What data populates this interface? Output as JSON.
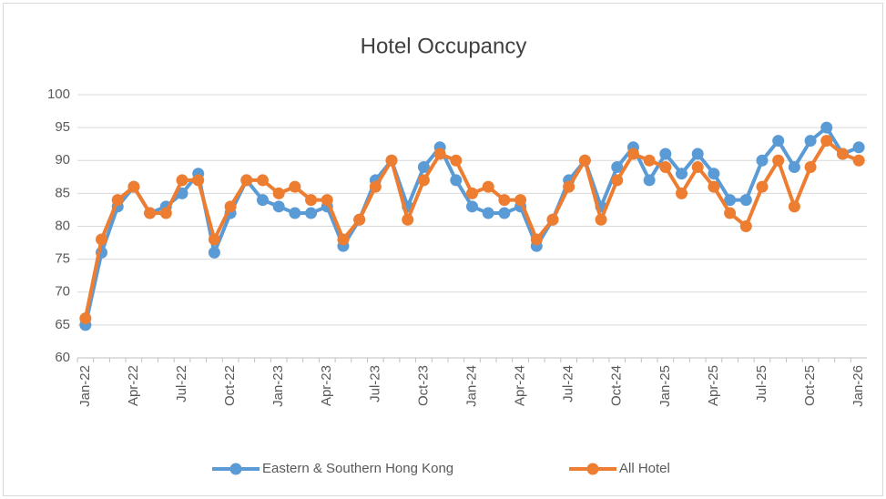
{
  "chart_data": {
    "type": "line",
    "title": "Hotel Occupancy",
    "categories": [
      "Jan-22",
      null,
      null,
      "Apr-22",
      null,
      null,
      "Jul-22",
      null,
      null,
      "Oct-22",
      null,
      null,
      "Jan-23",
      null,
      null,
      "Apr-23",
      null,
      null,
      "Jul-23",
      null,
      null,
      "Oct-23",
      null,
      null,
      "Jan-24",
      null,
      null,
      "Apr-24",
      null,
      null,
      "Jul-24",
      null,
      null,
      "Oct-24",
      null,
      null,
      "Jan-25",
      null,
      null,
      "Apr-25",
      null,
      null,
      "Jul-25",
      null,
      null,
      "Oct-25",
      null,
      null,
      "Jan-26"
    ],
    "series": [
      {
        "name": "Eastern & Southern Hong Kong",
        "color": "#5b9bd5",
        "values": [
          65,
          76,
          83,
          86,
          82,
          83,
          85,
          88,
          76,
          82,
          87,
          84,
          83,
          82,
          82,
          83,
          77,
          81,
          87,
          90,
          83,
          89,
          92,
          87,
          83,
          82,
          82,
          83,
          77,
          81,
          87,
          90,
          83,
          89,
          92,
          87,
          91,
          88,
          91,
          88,
          84,
          84,
          90,
          93,
          89,
          93,
          95,
          91,
          92
        ]
      },
      {
        "name": "All Hotel",
        "color": "#ed7d31",
        "values": [
          66,
          78,
          84,
          86,
          82,
          82,
          87,
          87,
          78,
          83,
          87,
          87,
          85,
          86,
          84,
          84,
          78,
          81,
          86,
          90,
          81,
          87,
          91,
          90,
          85,
          86,
          84,
          84,
          78,
          81,
          86,
          90,
          81,
          87,
          91,
          90,
          89,
          85,
          89,
          86,
          82,
          80,
          86,
          90,
          83,
          89,
          93,
          91,
          90
        ]
      }
    ],
    "ylim": [
      60,
      100
    ],
    "yticks": [
      60,
      65,
      70,
      75,
      80,
      85,
      90,
      95,
      100
    ],
    "grid": true,
    "legend": "bottom"
  }
}
